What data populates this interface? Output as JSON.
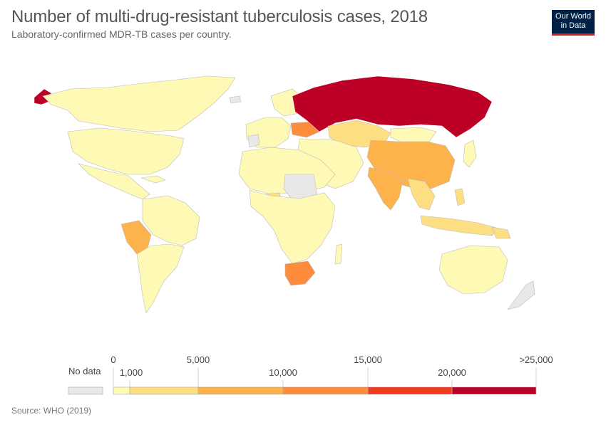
{
  "header": {
    "title": "Number of multi-drug-resistant tuberculosis cases, 2018",
    "subtitle": "Laboratory-confirmed MDR-TB cases per country."
  },
  "logo": {
    "line1": "Our World",
    "line2": "in Data"
  },
  "colors": {
    "no_data": "#e8e8e8",
    "bins": [
      "#fff9b6",
      "#fede82",
      "#feb24c",
      "#fd8d3c",
      "#f03b20",
      "#bd0026"
    ],
    "ocean": "#ffffff",
    "border": "#bbbbbb"
  },
  "legend": {
    "no_data_label": "No data",
    "upper_ticks": [
      "0",
      "5,000",
      "15,000",
      ">25,000"
    ],
    "lower_ticks": [
      "1,000",
      "10,000",
      "20,000"
    ]
  },
  "source": "Source: WHO (2019)"
}
